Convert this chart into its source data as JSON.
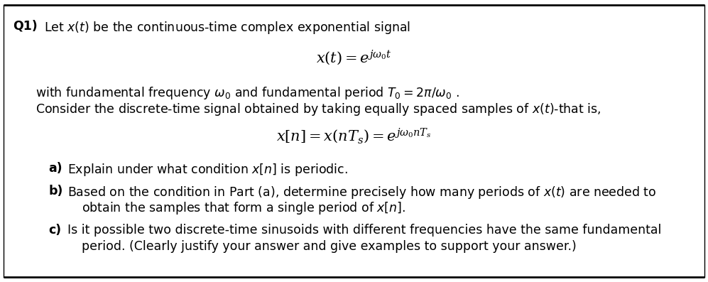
{
  "background_color": "#ffffff",
  "border_color": "#000000",
  "figsize": [
    9.97,
    3.97
  ],
  "dpi": 100,
  "title_label": "Q1)",
  "line1": "Let $x(t)$ be the continuous-time complex exponential signal",
  "eq1": "$x(t) = e^{j\\omega_0 t}$",
  "line2": "with fundamental frequency $\\omega_0$ and fundamental period $T_0 = 2\\pi/\\omega_0$ .",
  "line3": "Consider the discrete-time signal obtained by taking equally spaced samples of $x(t)$-that is,",
  "eq2": "$x[n] = x(nT_s) = e^{j\\omega_0 nT_s}$",
  "part_a_bold": "a)",
  "part_a_text": "Explain under what condition $x[n]$ is periodic.",
  "part_b_bold": "b)",
  "part_b_text": "Based on the condition in Part (a), determine precisely how many periods of $x(t)$ are needed to",
  "part_b_text2": "obtain the samples that form a single period of $x[n]$.",
  "part_c_bold": "c)",
  "part_c_text": "Is it possible two discrete-time sinusoids with different frequencies have the same fundamental",
  "part_c_text2": "period. (Clearly justify your answer and give examples to support your answer.)"
}
